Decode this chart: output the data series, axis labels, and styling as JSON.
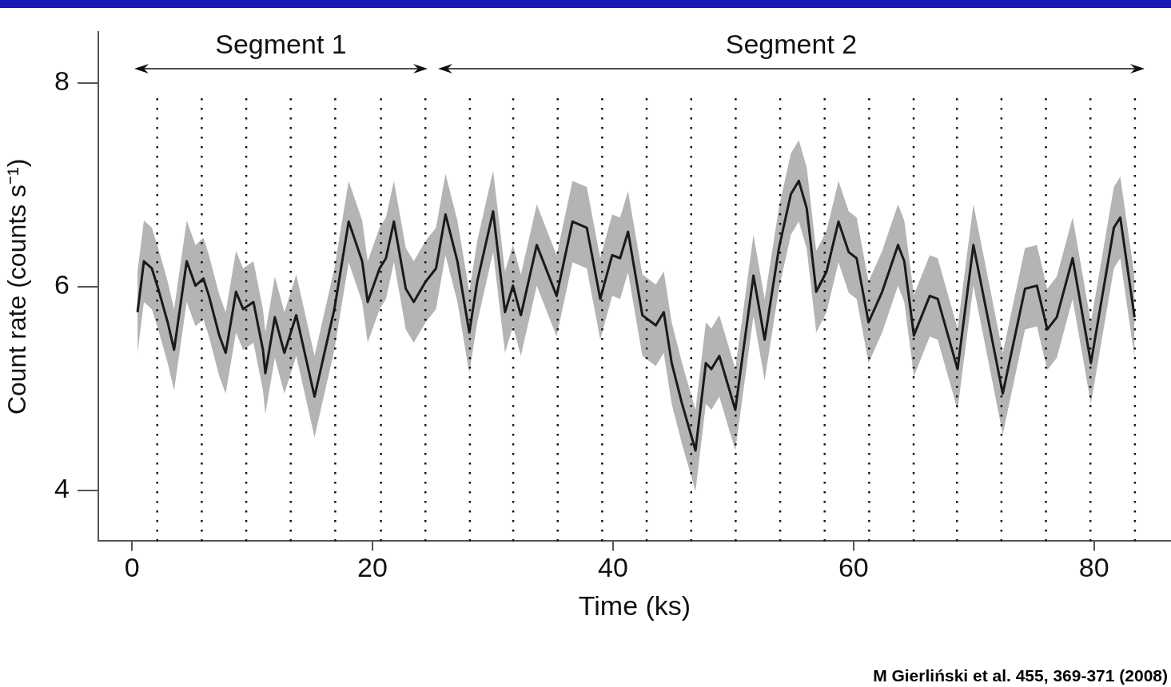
{
  "chart_data": {
    "type": "line",
    "xlabel": "Time (ks)",
    "ylabel": "Count rate (counts s⁻¹)",
    "x": [
      0.46,
      0.99,
      1.65,
      2.18,
      2.97,
      3.5,
      4.55,
      5.28,
      5.94,
      6.4,
      7.26,
      7.79,
      8.65,
      9.24,
      10.1,
      10.89,
      11.09,
      11.88,
      12.67,
      13.66,
      15.18,
      16.83,
      18.02,
      19.14,
      19.6,
      20.59,
      21.12,
      21.78,
      22.77,
      23.43,
      24.42,
      25.28,
      26.07,
      27.06,
      28.05,
      28.71,
      30.03,
      31.02,
      31.68,
      32.34,
      33.66,
      35.31,
      36.63,
      37.82,
      38.94,
      39.93,
      40.59,
      41.25,
      42.44,
      43.56,
      44.22,
      44.88,
      45.74,
      46.86,
      47.72,
      48.18,
      48.84,
      50.17,
      51.68,
      52.61,
      53.8,
      54.79,
      55.45,
      56.11,
      56.9,
      57.76,
      58.75,
      59.6,
      60.26,
      61.25,
      62.38,
      63.7,
      64.22,
      65.02,
      66.34,
      67.0,
      68.65,
      69.97,
      71.29,
      72.41,
      74.26,
      75.25,
      76.11,
      76.9,
      78.22,
      79.74,
      81.65,
      82.18,
      83.37
    ],
    "series": [
      {
        "color": "#1a1a1a",
        "values": [
          5.75,
          6.25,
          6.18,
          5.98,
          5.65,
          5.38,
          6.25,
          6.01,
          6.08,
          5.91,
          5.52,
          5.35,
          5.95,
          5.78,
          5.85,
          5.38,
          5.15,
          5.7,
          5.35,
          5.72,
          4.92,
          5.78,
          6.64,
          6.25,
          5.85,
          6.18,
          6.28,
          6.64,
          5.98,
          5.85,
          6.05,
          6.18,
          6.71,
          6.25,
          5.55,
          6.05,
          6.74,
          5.75,
          6.01,
          5.72,
          6.41,
          5.91,
          6.64,
          6.58,
          5.88,
          6.31,
          6.28,
          6.54,
          5.72,
          5.62,
          5.75,
          5.25,
          4.85,
          4.39,
          5.25,
          5.19,
          5.32,
          4.79,
          6.11,
          5.48,
          6.38,
          6.91,
          7.04,
          6.77,
          5.95,
          6.15,
          6.64,
          6.34,
          6.28,
          5.65,
          5.95,
          6.41,
          6.25,
          5.52,
          5.91,
          5.88,
          5.19,
          6.41,
          5.62,
          4.95,
          5.98,
          6.01,
          5.58,
          5.7,
          6.28,
          5.25,
          6.58,
          6.68,
          5.7
        ],
        "lower": [
          5.35,
          5.85,
          5.78,
          5.58,
          5.25,
          4.98,
          5.85,
          5.61,
          5.68,
          5.51,
          5.12,
          4.95,
          5.55,
          5.38,
          5.45,
          4.98,
          4.75,
          5.3,
          4.95,
          5.32,
          4.52,
          5.38,
          6.24,
          5.85,
          5.45,
          5.78,
          5.88,
          6.24,
          5.58,
          5.45,
          5.65,
          5.78,
          6.31,
          5.85,
          5.15,
          5.65,
          6.34,
          5.35,
          5.61,
          5.32,
          6.01,
          5.51,
          6.24,
          6.18,
          5.48,
          5.91,
          5.88,
          6.14,
          5.32,
          5.22,
          5.35,
          4.85,
          4.45,
          3.99,
          4.85,
          4.79,
          4.92,
          4.39,
          5.71,
          5.08,
          5.98,
          6.51,
          6.64,
          6.37,
          5.55,
          5.75,
          6.24,
          5.94,
          5.88,
          5.25,
          5.55,
          6.01,
          5.85,
          5.12,
          5.51,
          5.48,
          4.79,
          6.01,
          5.22,
          4.55,
          5.58,
          5.61,
          5.18,
          5.3,
          5.88,
          4.85,
          6.18,
          6.28,
          5.3
        ],
        "upper": [
          6.15,
          6.65,
          6.58,
          6.38,
          6.05,
          5.78,
          6.65,
          6.41,
          6.48,
          6.31,
          5.92,
          5.75,
          6.35,
          6.18,
          6.25,
          5.78,
          5.55,
          6.1,
          5.75,
          6.12,
          5.32,
          6.18,
          7.04,
          6.65,
          6.25,
          6.58,
          6.68,
          7.04,
          6.38,
          6.25,
          6.45,
          6.58,
          7.11,
          6.65,
          5.95,
          6.45,
          7.14,
          6.15,
          6.41,
          6.12,
          6.81,
          6.31,
          7.04,
          6.98,
          6.28,
          6.71,
          6.68,
          6.94,
          6.12,
          6.02,
          6.15,
          5.65,
          5.25,
          4.79,
          5.65,
          5.59,
          5.72,
          5.19,
          6.51,
          5.88,
          6.78,
          7.31,
          7.44,
          7.17,
          6.35,
          6.55,
          7.04,
          6.74,
          6.68,
          6.05,
          6.35,
          6.81,
          6.65,
          5.92,
          6.31,
          6.28,
          5.59,
          6.81,
          6.02,
          5.35,
          6.38,
          6.41,
          5.98,
          6.1,
          6.68,
          5.65,
          6.98,
          7.08,
          6.1
        ]
      }
    ],
    "xlim": [
      -2.8,
      86.4
    ],
    "xticks": [
      0,
      20,
      40,
      60,
      80
    ],
    "ylim": [
      3.5,
      8.5
    ],
    "yticks": [
      4,
      6,
      8
    ],
    "grid": false,
    "legend": false,
    "marker": "none",
    "line_style": "solid",
    "ref_lines": [
      {
        "axis": "x",
        "value": 2.1
      },
      {
        "axis": "x",
        "value": 5.8
      },
      {
        "axis": "x",
        "value": 9.5
      },
      {
        "axis": "x",
        "value": 13.2
      },
      {
        "axis": "x",
        "value": 16.9
      },
      {
        "axis": "x",
        "value": 20.7
      },
      {
        "axis": "x",
        "value": 24.4
      },
      {
        "axis": "x",
        "value": 28.1
      },
      {
        "axis": "x",
        "value": 31.7
      },
      {
        "axis": "x",
        "value": 35.4
      },
      {
        "axis": "x",
        "value": 39.1
      },
      {
        "axis": "x",
        "value": 42.8
      },
      {
        "axis": "x",
        "value": 46.5
      },
      {
        "axis": "x",
        "value": 50.2
      },
      {
        "axis": "x",
        "value": 53.9
      },
      {
        "axis": "x",
        "value": 57.6
      },
      {
        "axis": "x",
        "value": 61.3
      },
      {
        "axis": "x",
        "value": 65.0
      },
      {
        "axis": "x",
        "value": 68.6
      },
      {
        "axis": "x",
        "value": 72.3
      },
      {
        "axis": "x",
        "value": 76.0
      },
      {
        "axis": "x",
        "value": 79.7
      },
      {
        "axis": "x",
        "value": 83.4
      }
    ],
    "annotations": [
      "Segment 1",
      "Segment 2",
      "M Gierliński et al. 455, 369-371 (2008)"
    ]
  }
}
